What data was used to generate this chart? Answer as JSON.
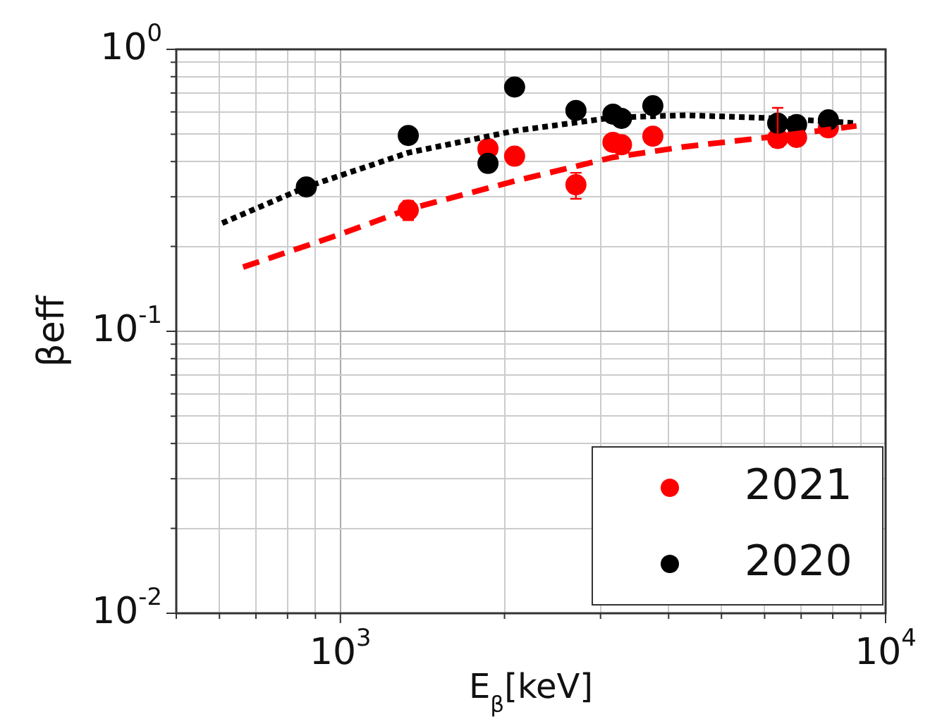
{
  "chart_data": {
    "type": "scatter",
    "xlabel": "E$_{β}$[keV]",
    "ylabel": "βeff",
    "log": "xy",
    "grid": true,
    "legend": "bottom right",
    "marker": "circle",
    "xlim": [
      500,
      10000
    ],
    "ylim": [
      0.01,
      1
    ],
    "xticks": [
      {
        "value": 500,
        "label": null
      },
      {
        "value": 600,
        "label": null
      },
      {
        "value": 700,
        "label": null
      },
      {
        "value": 800,
        "label": null
      },
      {
        "value": 900,
        "label": null
      },
      {
        "value": 1000,
        "label": "10$^{3}$"
      },
      {
        "value": 2000,
        "label": null
      },
      {
        "value": 3000,
        "label": null
      },
      {
        "value": 4000,
        "label": null
      },
      {
        "value": 5000,
        "label": null
      },
      {
        "value": 6000,
        "label": null
      },
      {
        "value": 7000,
        "label": null
      },
      {
        "value": 8000,
        "label": null
      },
      {
        "value": 9000,
        "label": null
      },
      {
        "value": 10000,
        "label": "10$^{4}$"
      }
    ],
    "yticks": [
      {
        "value": 0.01,
        "label": "10$^{-2}$"
      },
      {
        "value": 0.02,
        "label": null
      },
      {
        "value": 0.03,
        "label": null
      },
      {
        "value": 0.04,
        "label": null
      },
      {
        "value": 0.05,
        "label": null
      },
      {
        "value": 0.06,
        "label": null
      },
      {
        "value": 0.07,
        "label": null
      },
      {
        "value": 0.08,
        "label": null
      },
      {
        "value": 0.09,
        "label": null
      },
      {
        "value": 0.1,
        "label": "10$^{-1}$"
      },
      {
        "value": 0.2,
        "label": null
      },
      {
        "value": 0.3,
        "label": null
      },
      {
        "value": 0.4,
        "label": null
      },
      {
        "value": 0.5,
        "label": null
      },
      {
        "value": 0.6,
        "label": null
      },
      {
        "value": 0.7,
        "label": null
      },
      {
        "value": 0.8,
        "label": null
      },
      {
        "value": 0.9,
        "label": null
      },
      {
        "value": 1,
        "label": "10$^{0}$"
      }
    ],
    "series": [
      {
        "name": "2021",
        "color": "#ff0000",
        "x": [
          1332,
          1865,
          2087,
          2704,
          3162,
          3278,
          3742,
          6340,
          6866,
          7853
        ],
        "values": [
          0.269,
          0.445,
          0.418,
          0.331,
          0.468,
          0.459,
          0.492,
          0.483,
          0.487,
          0.527
        ],
        "errors": [
          [
            0.248,
            0.29
          ],
          null,
          null,
          [
            0.295,
            0.365
          ],
          null,
          null,
          null,
          [
            0.45,
            0.62
          ],
          null,
          null
        ]
      },
      {
        "name": "2020",
        "color": "#000000",
        "x": [
          866,
          1332,
          1865,
          2087,
          2704,
          3162,
          3278,
          3742,
          6340,
          6866,
          7853
        ],
        "values": [
          0.325,
          0.495,
          0.394,
          0.735,
          0.607,
          0.589,
          0.569,
          0.631,
          0.547,
          0.541,
          0.562
        ]
      },
      {
        "type": "line",
        "line_style": "dotted",
        "marker": "none",
        "color": "#000000",
        "x": [
          607,
          866,
          1332,
          2087,
          3162,
          4296,
          6340,
          8760
        ],
        "values": [
          0.242,
          0.325,
          0.43,
          0.514,
          0.573,
          0.584,
          0.569,
          0.548
        ]
      },
      {
        "type": "line",
        "line_style": "dashed",
        "marker": "none",
        "color": "#ff0000",
        "x": [
          663,
          994,
          1332,
          2087,
          3162,
          4296,
          6340,
          8845
        ],
        "values": [
          0.169,
          0.22,
          0.271,
          0.341,
          0.414,
          0.452,
          0.492,
          0.535
        ]
      }
    ]
  }
}
